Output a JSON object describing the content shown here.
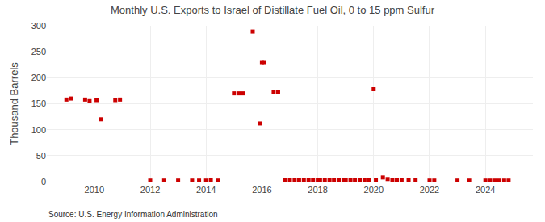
{
  "chart_data": {
    "type": "scatter",
    "title": "Monthly U.S. Exports to Israel of Distillate Fuel Oil, 0 to 15 ppm Sulfur",
    "ylabel": "Thousand Barrels",
    "annotations": [
      "Source: U.S. Energy Information Administration"
    ],
    "color": "#cc0000",
    "marker": "square",
    "grid": true,
    "xlim": [
      2008.3,
      2025.7
    ],
    "xticks": [
      2010,
      2012,
      2014,
      2016,
      2018,
      2020,
      2022,
      2024
    ],
    "ylim": [
      0,
      300
    ],
    "yticks": [
      0,
      50,
      100,
      150,
      200,
      250,
      300
    ],
    "x": [
      2009.0,
      2009.17,
      2009.67,
      2009.83,
      2010.08,
      2010.25,
      2010.75,
      2010.92,
      2012.0,
      2012.5,
      2013.0,
      2013.5,
      2013.75,
      2014.0,
      2014.17,
      2014.42,
      2015.0,
      2015.17,
      2015.33,
      2015.67,
      2015.92,
      2016.0,
      2016.08,
      2016.42,
      2016.58,
      2016.83,
      2017.0,
      2017.17,
      2017.33,
      2017.5,
      2017.67,
      2017.83,
      2018.0,
      2018.08,
      2018.25,
      2018.42,
      2018.58,
      2018.75,
      2018.92,
      2019.0,
      2019.17,
      2019.33,
      2019.5,
      2019.67,
      2019.83,
      2020.0,
      2020.08,
      2020.33,
      2020.5,
      2020.67,
      2020.83,
      2021.0,
      2021.25,
      2021.5,
      2022.0,
      2022.17,
      2023.0,
      2023.42,
      2024.0,
      2024.17,
      2024.33,
      2024.5,
      2024.67,
      2024.83
    ],
    "values": [
      158,
      160,
      158,
      155,
      157,
      120,
      157,
      158,
      2,
      2,
      2,
      2,
      2,
      2,
      3,
      2,
      170,
      170,
      170,
      289,
      112,
      230,
      230,
      172,
      172,
      3,
      3,
      3,
      3,
      3,
      3,
      3,
      3,
      3,
      3,
      3,
      3,
      3,
      3,
      3,
      3,
      3,
      3,
      3,
      3,
      178,
      3,
      8,
      5,
      3,
      3,
      3,
      3,
      3,
      2,
      2,
      2,
      2,
      2,
      2,
      2,
      2,
      2,
      2
    ]
  }
}
